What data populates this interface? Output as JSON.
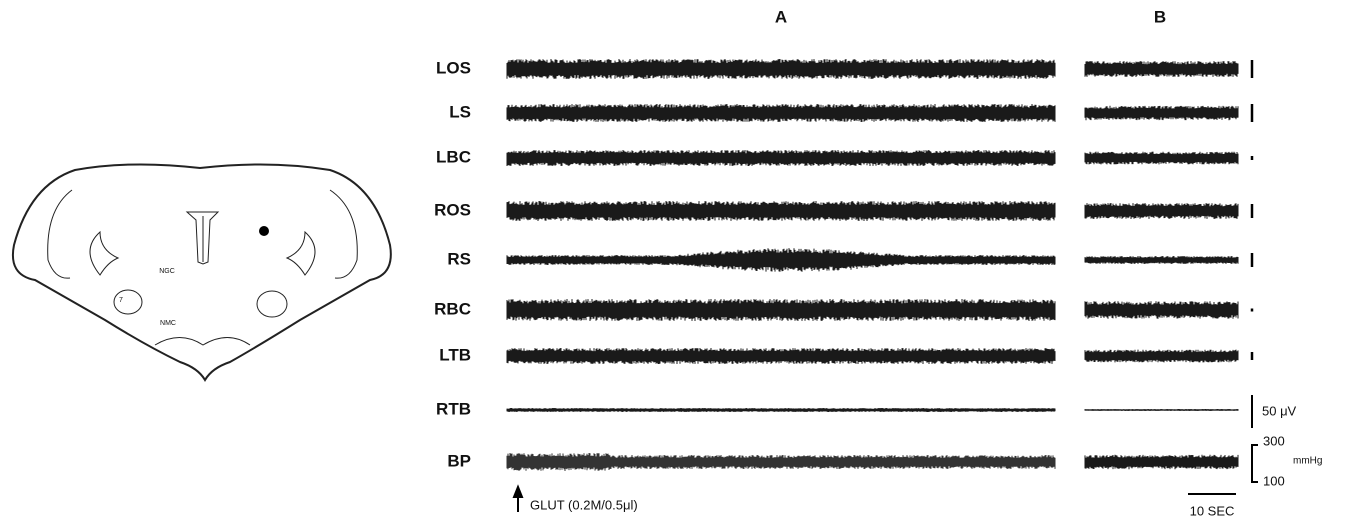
{
  "panels": [
    "A",
    "B"
  ],
  "traces": [
    "LOS",
    "LS",
    "LBC",
    "ROS",
    "RS",
    "RBC",
    "LTB",
    "RTB",
    "BP"
  ],
  "scale": {
    "voltage": "50 μV",
    "pressure_high": "300",
    "pressure_unit": "mmHg",
    "pressure_low": "100",
    "time": "10 SEC"
  },
  "annotation": "GLUT (0.2M/0.5μl)",
  "brain": {
    "labels": [
      "NGC",
      "7",
      "NMC"
    ]
  }
}
